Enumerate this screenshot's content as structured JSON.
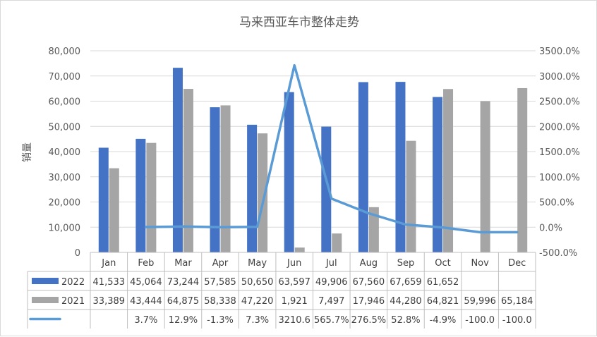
{
  "chart_data": {
    "type": "bar",
    "title": "马来西亚车市整体走势",
    "ylabel": "销量",
    "y2label": "",
    "ylim": [
      0,
      80000
    ],
    "y2lim": [
      -500,
      3500
    ],
    "yticks": [
      "0",
      "10,000",
      "20,000",
      "30,000",
      "40,000",
      "50,000",
      "60,000",
      "70,000",
      "80,000"
    ],
    "y2ticks": [
      "-500.0%",
      "0.0%",
      "500.0%",
      "1000.0%",
      "1500.0%",
      "2000.0%",
      "2500.0%",
      "3000.0%",
      "3500.0%"
    ],
    "categories": [
      "Jan",
      "Feb",
      "Mar",
      "Apr",
      "May",
      "Jun",
      "Jul",
      "Aug",
      "Sep",
      "Oct",
      "Nov",
      "Dec"
    ],
    "series": [
      {
        "name": "2022",
        "type": "bar",
        "color": "#4472c4",
        "values": [
          41533,
          45064,
          73244,
          57585,
          50650,
          63597,
          49906,
          67560,
          67659,
          61652,
          null,
          null
        ],
        "labels": [
          "41,533",
          "45,064",
          "73,244",
          "57,585",
          "50,650",
          "63,597",
          "49,906",
          "67,560",
          "67,659",
          "61,652",
          "",
          ""
        ]
      },
      {
        "name": "2021",
        "type": "bar",
        "color": "#a5a5a5",
        "values": [
          33389,
          43444,
          64875,
          58338,
          47220,
          1921,
          7497,
          17946,
          44280,
          64821,
          59996,
          65184
        ],
        "labels": [
          "33,389",
          "43,444",
          "64,875",
          "58,338",
          "47,220",
          "1,921",
          "7,497",
          "17,946",
          "44,280",
          "64,821",
          "59,996",
          "65,184"
        ]
      },
      {
        "name": "",
        "type": "line",
        "axis": "y2",
        "color": "#5b9bd5",
        "values": [
          null,
          3.7,
          12.9,
          -1.3,
          7.3,
          3210.6,
          565.7,
          276.5,
          52.8,
          -4.9,
          -100.0,
          -100.0
        ],
        "labels": [
          "",
          "3.7%",
          "12.9%",
          "-1.3%",
          "7.3%",
          "3210.6",
          "565.7%",
          "276.5%",
          "52.8%",
          "-4.9%",
          "-100.0",
          "-100.0"
        ]
      }
    ],
    "grid": true,
    "legend": "data-table"
  }
}
